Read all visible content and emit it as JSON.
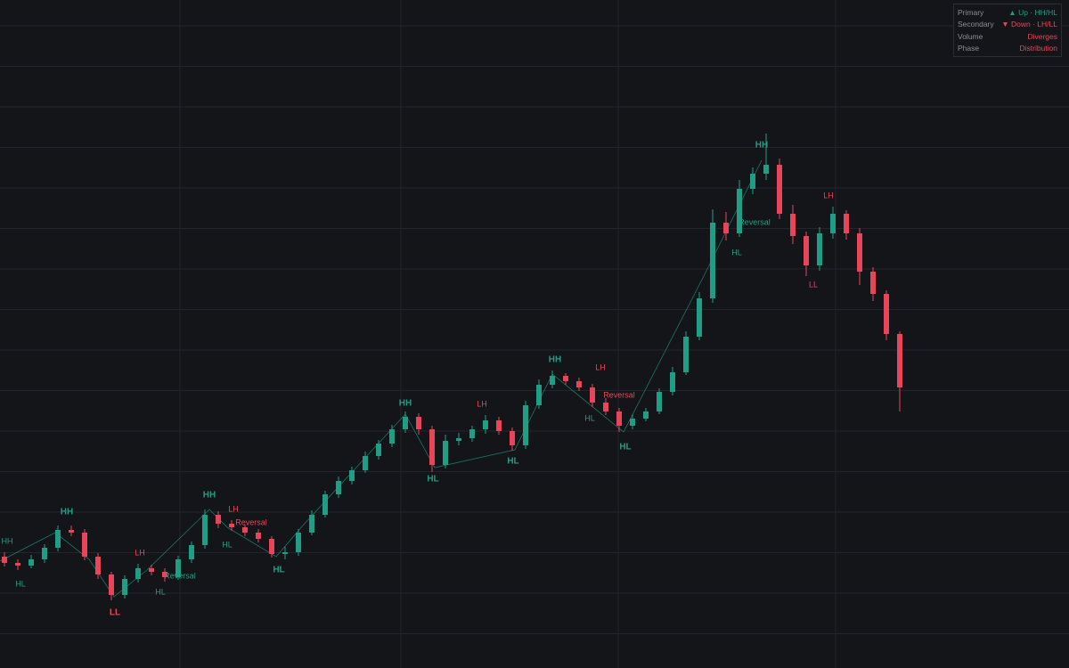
{
  "chart_data": {
    "type": "candlestick",
    "open": [
      125,
      118,
      115,
      122,
      135,
      155,
      152,
      125,
      105,
      82,
      100,
      112,
      108,
      102,
      122,
      138,
      172,
      162,
      158,
      152,
      145,
      128,
      130,
      152,
      172,
      195,
      210,
      222,
      238,
      252,
      268,
      282,
      268,
      228,
      255,
      258,
      268,
      278,
      266,
      250,
      295,
      318,
      328,
      322,
      315,
      298,
      288,
      272,
      280,
      288,
      310,
      332,
      372,
      415,
      500,
      488,
      538,
      555,
      565,
      510,
      485,
      452,
      488,
      510,
      488,
      445,
      420,
      375
    ],
    "high": [
      130,
      122,
      127,
      139,
      160,
      160,
      156,
      129,
      108,
      104,
      117,
      116,
      112,
      126,
      142,
      178,
      176,
      166,
      161,
      156,
      148,
      136,
      156,
      177,
      199,
      215,
      226,
      243,
      256,
      273,
      288,
      286,
      272,
      262,
      264,
      272,
      284,
      282,
      270,
      300,
      324,
      334,
      331,
      326,
      319,
      303,
      292,
      285,
      292,
      314,
      338,
      378,
      422,
      515,
      512,
      548,
      562,
      600,
      572,
      520,
      490,
      495,
      518,
      514,
      494,
      450,
      424,
      378
    ],
    "low": [
      114,
      110,
      112,
      118,
      131,
      148,
      121,
      100,
      76,
      78,
      96,
      104,
      97,
      99,
      118,
      134,
      157,
      154,
      148,
      141,
      124,
      122,
      126,
      149,
      169,
      191,
      206,
      219,
      234,
      248,
      264,
      262,
      220,
      224,
      250,
      254,
      263,
      262,
      244,
      246,
      291,
      314,
      318,
      311,
      293,
      284,
      265,
      268,
      277,
      285,
      306,
      329,
      368,
      410,
      480,
      484,
      532,
      548,
      504,
      476,
      440,
      446,
      482,
      481,
      430,
      412,
      368,
      288
    ],
    "close": [
      118,
      115,
      122,
      135,
      155,
      152,
      125,
      105,
      82,
      100,
      112,
      108,
      102,
      122,
      138,
      172,
      162,
      158,
      152,
      145,
      128,
      130,
      152,
      172,
      195,
      210,
      222,
      238,
      252,
      268,
      282,
      268,
      228,
      255,
      258,
      268,
      278,
      266,
      250,
      295,
      318,
      328,
      322,
      315,
      298,
      288,
      272,
      280,
      288,
      310,
      332,
      372,
      415,
      500,
      488,
      538,
      555,
      565,
      510,
      485,
      452,
      488,
      510,
      488,
      445,
      420,
      375,
      315
    ],
    "ylim": [
      0,
      750
    ],
    "up_color": "#1f9e85",
    "down_color": "#e8455a",
    "grid": true,
    "annotations": [
      "HH",
      "HL",
      "HH",
      "LL",
      "LH",
      "HL",
      "Reversal",
      "HH",
      "LH",
      "Reversal",
      "HL",
      "HL",
      "HH",
      "LH",
      "HL",
      "HL",
      "HH",
      "LH",
      "Reversal",
      "HL",
      "HL",
      "HH",
      "Reversal",
      "HL",
      "LH",
      "LL"
    ]
  },
  "panel": {
    "rows": [
      {
        "label": "Primary",
        "value": "▲ Up · HH/HL",
        "color": "#1f9e85"
      },
      {
        "label": "Secondary",
        "value": "▼ Down · LH/LL",
        "color": "#e8455a"
      },
      {
        "label": "Volume",
        "value": "Diverges",
        "color": "#e8455a"
      },
      {
        "label": "Phase",
        "value": "Distribution",
        "color": "#e8455a"
      }
    ]
  }
}
